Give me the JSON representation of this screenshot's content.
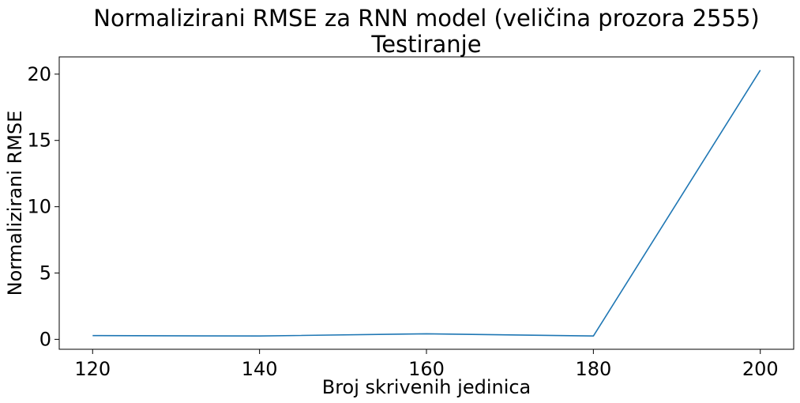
{
  "chart_data": {
    "type": "line",
    "title": "Normalizirani RMSE za RNN model (veličina prozora 2555)",
    "subtitle": "Testiranje",
    "xlabel": "Broj skrivenih jedinica",
    "ylabel": "Normalizirani RMSE",
    "x": [
      120,
      140,
      160,
      180,
      200
    ],
    "series": [
      {
        "values": [
          0.28,
          0.25,
          0.42,
          0.25,
          20.3
        ],
        "color": "#1f77b4"
      }
    ],
    "xticks": [
      120,
      140,
      160,
      180,
      200
    ],
    "yticks": [
      0,
      5,
      10,
      15,
      20
    ],
    "xlim": [
      116,
      204
    ],
    "ylim": [
      -0.75,
      21.3
    ],
    "grid": false,
    "legend": false
  }
}
